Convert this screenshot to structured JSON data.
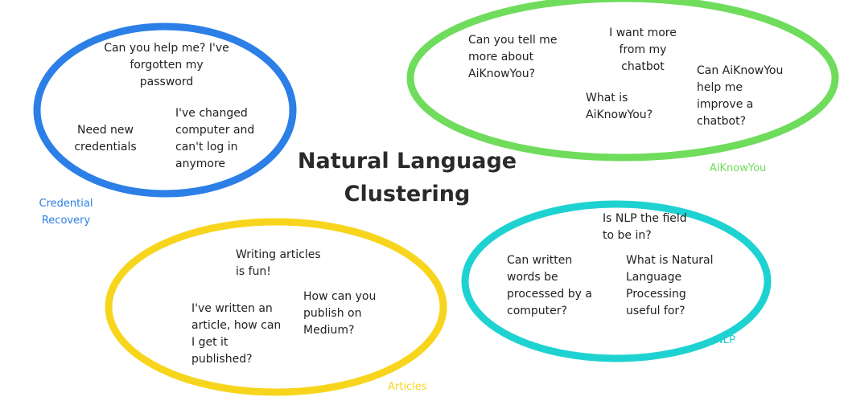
{
  "title": "Natural Language\nClustering",
  "colors": {
    "credential_recovery": "#2b7fe6",
    "aiknowyou": "#6fdc5c",
    "nlp": "#1fd2d2",
    "articles": "#f7d51d"
  },
  "clusters": {
    "credential_recovery": {
      "label": "Credential\nRecovery",
      "items": [
        "Can you help me? I've\nforgotten my\npassword",
        "Need new\ncredentials",
        "I've changed\ncomputer and\ncan't log in\nanymore"
      ]
    },
    "aiknowyou": {
      "label": "AiKnowYou",
      "items": [
        "Can you tell me\nmore about\nAiKnowYou?",
        "I want more\nfrom my\nchatbot",
        "What is\nAiKnowYou?",
        "Can AiKnowYou\nhelp me\nimprove a\nchatbot?"
      ]
    },
    "nlp": {
      "label": "NLP",
      "items": [
        "Is NLP the field\nto be in?",
        "Can written\nwords be\nprocessed by a\ncomputer?",
        "What is Natural\nLanguage\nProcessing\nuseful for?"
      ]
    },
    "articles": {
      "label": "Articles",
      "items": [
        "Writing articles\nis fun!",
        "How can you\npublish on\nMedium?",
        "I've written an\narticle, how can\nI get it\npublished?"
      ]
    }
  }
}
